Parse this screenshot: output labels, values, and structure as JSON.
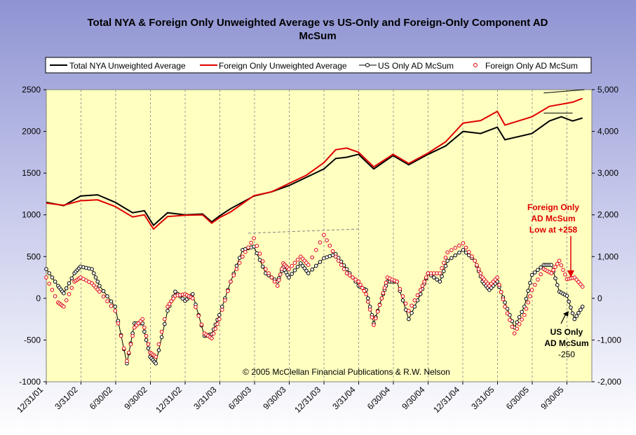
{
  "chart_data": {
    "type": "line",
    "title_line1": "Total NYA & Foreign Only Unweighted Average vs US-Only and Foreign-Only Component AD",
    "title_line2": "McSum",
    "xlabel": "",
    "ylabel_left": "",
    "ylabel_right": "",
    "y_left_lim": [
      -1000,
      2500
    ],
    "y_right_lim": [
      -2000,
      5000
    ],
    "y_left_ticks": [
      "2500",
      "2000",
      "1500",
      "1000",
      "500",
      "0",
      "-500",
      "-1000"
    ],
    "y_right_ticks": [
      "5,000",
      "4,000",
      "3,000",
      "2,000",
      "1,000",
      "0",
      "-1,000",
      "-2,000"
    ],
    "x_ticks": [
      "12/31/01",
      "3/31/02",
      "6/30/02",
      "9/30/02",
      "12/31/02",
      "3/31/03",
      "6/30/03",
      "9/30/03",
      "12/31/03",
      "3/31/04",
      "6/30/04",
      "9/30/04",
      "12/31/04",
      "3/31/05",
      "6/30/05",
      "9/30/05"
    ],
    "grid": true,
    "legend_position": "top",
    "colors": {
      "plot_bg": "#ffffc0",
      "total_nya": "#000000",
      "foreign_avg": "#e00000",
      "us_mcsum": "#000000",
      "foreign_mcsum": "#e00000",
      "trendline": "#808080"
    },
    "series": [
      {
        "name": "Total NYA Unweighted Average",
        "axis": "right",
        "style": "line",
        "points": [
          [
            "12/31/01",
            2300
          ],
          [
            "2/15/02",
            2220
          ],
          [
            "3/31/02",
            2450
          ],
          [
            "5/15/02",
            2480
          ],
          [
            "6/30/02",
            2300
          ],
          [
            "8/15/02",
            2050
          ],
          [
            "9/15/02",
            2100
          ],
          [
            "10/9/02",
            1750
          ],
          [
            "11/15/02",
            2050
          ],
          [
            "12/31/02",
            2000
          ],
          [
            "2/15/03",
            2020
          ],
          [
            "3/11/03",
            1830
          ],
          [
            "3/31/03",
            1970
          ],
          [
            "4/30/03",
            2150
          ],
          [
            "6/30/03",
            2450
          ],
          [
            "8/15/03",
            2550
          ],
          [
            "9/30/03",
            2700
          ],
          [
            "11/15/03",
            2900
          ],
          [
            "12/31/03",
            3100
          ],
          [
            "1/31/04",
            3350
          ],
          [
            "2/29/04",
            3380
          ],
          [
            "3/31/04",
            3450
          ],
          [
            "5/10/04",
            3100
          ],
          [
            "6/30/04",
            3420
          ],
          [
            "8/10/04",
            3200
          ],
          [
            "9/30/04",
            3450
          ],
          [
            "11/15/04",
            3650
          ],
          [
            "12/31/04",
            4000
          ],
          [
            "2/15/05",
            3950
          ],
          [
            "3/31/05",
            4100
          ],
          [
            "4/20/05",
            3800
          ],
          [
            "6/30/05",
            3950
          ],
          [
            "8/15/05",
            4250
          ],
          [
            "9/15/05",
            4350
          ],
          [
            "10/15/05",
            4250
          ],
          [
            "11/10/05",
            4320
          ]
        ]
      },
      {
        "name": "Foreign Only Unweighted Average",
        "axis": "right",
        "style": "line",
        "points": [
          [
            "12/31/01",
            2280
          ],
          [
            "2/15/02",
            2230
          ],
          [
            "3/31/02",
            2340
          ],
          [
            "5/15/02",
            2360
          ],
          [
            "6/30/02",
            2200
          ],
          [
            "8/15/02",
            1950
          ],
          [
            "9/15/02",
            2000
          ],
          [
            "10/9/02",
            1660
          ],
          [
            "11/15/02",
            1960
          ],
          [
            "12/31/02",
            1990
          ],
          [
            "2/15/03",
            2000
          ],
          [
            "3/11/03",
            1800
          ],
          [
            "3/31/03",
            1930
          ],
          [
            "4/30/03",
            2070
          ],
          [
            "6/30/03",
            2460
          ],
          [
            "8/15/03",
            2550
          ],
          [
            "9/30/03",
            2750
          ],
          [
            "11/15/03",
            2950
          ],
          [
            "12/31/03",
            3250
          ],
          [
            "1/31/04",
            3560
          ],
          [
            "2/29/04",
            3600
          ],
          [
            "3/31/04",
            3500
          ],
          [
            "5/10/04",
            3150
          ],
          [
            "6/30/04",
            3450
          ],
          [
            "8/10/04",
            3230
          ],
          [
            "9/30/04",
            3480
          ],
          [
            "11/15/04",
            3750
          ],
          [
            "12/31/04",
            4200
          ],
          [
            "2/15/05",
            4260
          ],
          [
            "3/31/05",
            4480
          ],
          [
            "4/20/05",
            4150
          ],
          [
            "6/30/05",
            4350
          ],
          [
            "8/15/05",
            4600
          ],
          [
            "9/15/05",
            4650
          ],
          [
            "10/15/05",
            4700
          ],
          [
            "11/10/05",
            4790
          ]
        ]
      },
      {
        "name": "US Only AD McSum",
        "axis": "left",
        "style": "line-markers",
        "points": [
          [
            "12/31/01",
            350
          ],
          [
            "1/31/02",
            150
          ],
          [
            "2/15/02",
            60
          ],
          [
            "3/15/02",
            300
          ],
          [
            "3/31/02",
            380
          ],
          [
            "4/30/02",
            350
          ],
          [
            "5/20/02",
            150
          ],
          [
            "6/30/02",
            -100
          ],
          [
            "7/31/02",
            -780
          ],
          [
            "8/20/02",
            -300
          ],
          [
            "9/10/02",
            -300
          ],
          [
            "9/30/02",
            -700
          ],
          [
            "10/15/02",
            -780
          ],
          [
            "11/15/02",
            -150
          ],
          [
            "12/5/02",
            80
          ],
          [
            "12/31/02",
            -30
          ],
          [
            "1/20/03",
            50
          ],
          [
            "2/20/03",
            -450
          ],
          [
            "3/11/03",
            -430
          ],
          [
            "3/31/03",
            -200
          ],
          [
            "4/30/03",
            200
          ],
          [
            "5/31/03",
            580
          ],
          [
            "6/30/03",
            620
          ],
          [
            "7/31/03",
            300
          ],
          [
            "8/31/03",
            200
          ],
          [
            "9/15/03",
            370
          ],
          [
            "9/30/03",
            250
          ],
          [
            "10/31/03",
            420
          ],
          [
            "11/20/03",
            300
          ],
          [
            "12/31/03",
            480
          ],
          [
            "1/31/04",
            530
          ],
          [
            "2/29/04",
            350
          ],
          [
            "3/31/04",
            150
          ],
          [
            "4/20/04",
            100
          ],
          [
            "5/10/04",
            -300
          ],
          [
            "5/31/04",
            0
          ],
          [
            "6/15/04",
            200
          ],
          [
            "7/10/04",
            200
          ],
          [
            "8/10/04",
            -250
          ],
          [
            "9/10/04",
            50
          ],
          [
            "9/30/04",
            300
          ],
          [
            "10/31/04",
            200
          ],
          [
            "11/20/04",
            450
          ],
          [
            "12/31/04",
            580
          ],
          [
            "1/31/05",
            450
          ],
          [
            "2/20/05",
            200
          ],
          [
            "3/10/05",
            100
          ],
          [
            "3/31/05",
            200
          ],
          [
            "4/20/05",
            -50
          ],
          [
            "5/15/05",
            -350
          ],
          [
            "6/10/05",
            -100
          ],
          [
            "6/30/05",
            280
          ],
          [
            "7/31/05",
            400
          ],
          [
            "8/20/05",
            400
          ],
          [
            "9/10/05",
            80
          ],
          [
            "9/30/05",
            30
          ],
          [
            "10/20/05",
            -250
          ],
          [
            "11/10/05",
            -100
          ]
        ]
      },
      {
        "name": "Foreign Only AD McSum",
        "axis": "left",
        "style": "markers",
        "points": [
          [
            "12/31/01",
            250
          ],
          [
            "1/31/02",
            -50
          ],
          [
            "2/15/02",
            -100
          ],
          [
            "3/15/02",
            200
          ],
          [
            "3/31/02",
            250
          ],
          [
            "4/30/02",
            180
          ],
          [
            "5/20/02",
            80
          ],
          [
            "6/30/02",
            -150
          ],
          [
            "7/31/02",
            -750
          ],
          [
            "8/20/02",
            -350
          ],
          [
            "9/10/02",
            -250
          ],
          [
            "9/30/02",
            -650
          ],
          [
            "10/15/02",
            -700
          ],
          [
            "11/15/02",
            -100
          ],
          [
            "12/5/02",
            30
          ],
          [
            "12/31/02",
            50
          ],
          [
            "1/20/03",
            0
          ],
          [
            "2/20/03",
            -420
          ],
          [
            "3/11/03",
            -480
          ],
          [
            "3/31/03",
            -250
          ],
          [
            "4/30/03",
            200
          ],
          [
            "5/31/03",
            500
          ],
          [
            "6/30/03",
            720
          ],
          [
            "7/31/03",
            350
          ],
          [
            "8/31/03",
            150
          ],
          [
            "9/15/03",
            420
          ],
          [
            "9/30/03",
            350
          ],
          [
            "10/31/03",
            500
          ],
          [
            "11/20/03",
            400
          ],
          [
            "12/31/03",
            760
          ],
          [
            "1/31/04",
            500
          ],
          [
            "2/29/04",
            300
          ],
          [
            "3/31/04",
            200
          ],
          [
            "4/20/04",
            50
          ],
          [
            "5/10/04",
            -320
          ],
          [
            "5/31/04",
            0
          ],
          [
            "6/15/04",
            250
          ],
          [
            "7/10/04",
            200
          ],
          [
            "8/10/04",
            -150
          ],
          [
            "9/10/04",
            100
          ],
          [
            "9/30/04",
            300
          ],
          [
            "10/31/04",
            300
          ],
          [
            "11/20/04",
            550
          ],
          [
            "12/31/04",
            660
          ],
          [
            "1/31/05",
            450
          ],
          [
            "2/20/05",
            250
          ],
          [
            "3/10/05",
            150
          ],
          [
            "3/31/05",
            250
          ],
          [
            "4/20/05",
            -100
          ],
          [
            "5/15/05",
            -420
          ],
          [
            "6/10/05",
            -200
          ],
          [
            "6/30/05",
            100
          ],
          [
            "7/31/05",
            350
          ],
          [
            "8/20/05",
            300
          ],
          [
            "9/10/05",
            450
          ],
          [
            "9/30/05",
            230
          ],
          [
            "10/20/05",
            250
          ],
          [
            "11/10/05",
            140
          ]
        ]
      }
    ],
    "trendlines": [
      {
        "axis": "left",
        "dashed": true,
        "color": "#808080",
        "points": [
          [
            "6/15/03",
            780
          ],
          [
            "3/31/04",
            830
          ]
        ]
      },
      {
        "axis": "right",
        "dashed": false,
        "color": "#000000",
        "points": [
          [
            "7/31/05",
            4920
          ],
          [
            "11/15/05",
            5000
          ]
        ]
      },
      {
        "axis": "right",
        "dashed": false,
        "color": "#000000",
        "points": [
          [
            "7/31/05",
            4440
          ],
          [
            "10/15/05",
            4440
          ]
        ]
      }
    ],
    "annotations": {
      "foreign": [
        "Foreign Only",
        "AD McSum",
        "Low at +258"
      ],
      "us": [
        "US Only",
        "AD McSum",
        "-250"
      ],
      "copyright": "© 2005 McClellan Financial Publications & R.W. Nelson"
    }
  }
}
